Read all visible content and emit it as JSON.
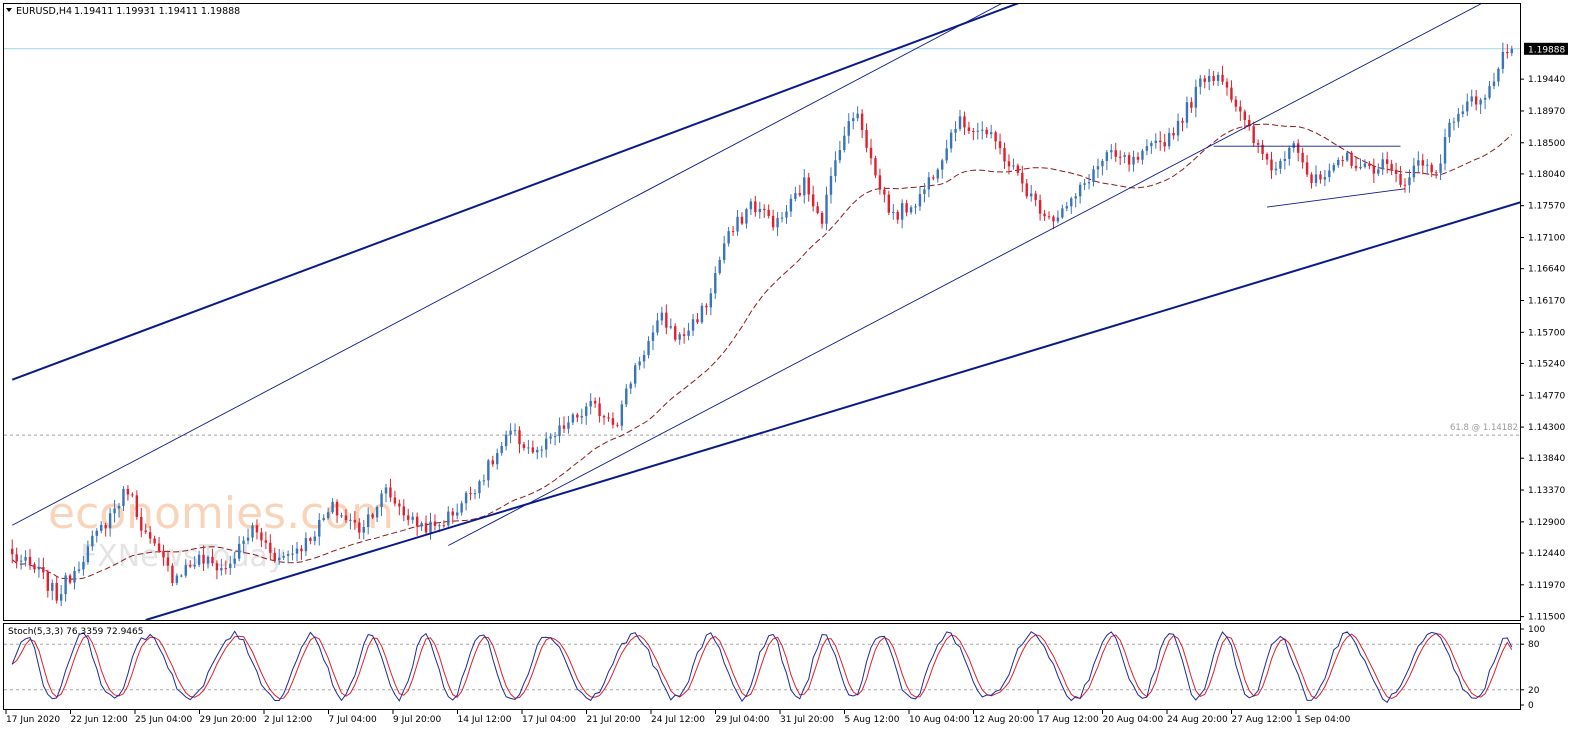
{
  "header": {
    "symbol": "EURUSD,H4",
    "ohlc": "1.19411 1.19931 1.19411 1.19888"
  },
  "price_badge": "1.19888",
  "fib_label": "61.8 @ 1.14182",
  "stoch_label": "Stoch(5,3,3) 76.3359 72.9465",
  "watermark": {
    "line1": "economies.com",
    "line2": "FXNewsToday"
  },
  "colors": {
    "bull": "#3a74b8",
    "bear": "#e21f2c",
    "ma": "#8b1a1a",
    "trend": "#0b1a8a",
    "stoch_main": "#1f2a9a",
    "stoch_signal": "#e0202a",
    "grid_level": "#a0a0a0",
    "last_price_line": "#9fd3e6"
  },
  "chart_data": {
    "type": "candlestick",
    "title": "EURUSD,H4",
    "ylim": [
      1.1145,
      1.2055
    ],
    "y_ticks": [
      "1.19440",
      "1.18970",
      "1.18500",
      "1.18040",
      "1.17570",
      "1.17100",
      "1.16640",
      "1.16170",
      "1.15700",
      "1.15240",
      "1.14770",
      "1.14300",
      "1.13840",
      "1.13370",
      "1.12900",
      "1.12440",
      "1.11970",
      "1.11500"
    ],
    "x_ticks": [
      "17 Jun 2020",
      "22 Jun 12:00",
      "25 Jun 04:00",
      "29 Jun 20:00",
      "2 Jul 12:00",
      "7 Jul 04:00",
      "9 Jul 20:00",
      "14 Jul 12:00",
      "17 Jul 04:00",
      "21 Jul 20:00",
      "24 Jul 12:00",
      "29 Jul 04:00",
      "31 Jul 20:00",
      "5 Aug 12:00",
      "10 Aug 04:00",
      "12 Aug 20:00",
      "17 Aug 12:00",
      "20 Aug 04:00",
      "24 Aug 20:00",
      "27 Aug 12:00",
      "1 Sep 04:00"
    ],
    "last_price": 1.19888,
    "fib_level": 1.14182,
    "price_anchors": [
      [
        0,
        1.124
      ],
      [
        6,
        1.1215
      ],
      [
        10,
        1.118
      ],
      [
        15,
        1.123
      ],
      [
        20,
        1.128
      ],
      [
        26,
        1.134
      ],
      [
        30,
        1.127
      ],
      [
        36,
        1.121
      ],
      [
        42,
        1.1235
      ],
      [
        48,
        1.122
      ],
      [
        54,
        1.128
      ],
      [
        60,
        1.1235
      ],
      [
        66,
        1.126
      ],
      [
        72,
        1.131
      ],
      [
        78,
        1.128
      ],
      [
        84,
        1.1335
      ],
      [
        90,
        1.129
      ],
      [
        95,
        1.128
      ],
      [
        100,
        1.131
      ],
      [
        106,
        1.136
      ],
      [
        112,
        1.142
      ],
      [
        118,
        1.139
      ],
      [
        124,
        1.143
      ],
      [
        130,
        1.146
      ],
      [
        136,
        1.144
      ],
      [
        140,
        1.152
      ],
      [
        146,
        1.159
      ],
      [
        150,
        1.156
      ],
      [
        156,
        1.161
      ],
      [
        160,
        1.17
      ],
      [
        166,
        1.176
      ],
      [
        172,
        1.173
      ],
      [
        178,
        1.179
      ],
      [
        182,
        1.174
      ],
      [
        186,
        1.185
      ],
      [
        190,
        1.19
      ],
      [
        194,
        1.18
      ],
      [
        198,
        1.174
      ],
      [
        204,
        1.177
      ],
      [
        208,
        1.182
      ],
      [
        212,
        1.188
      ],
      [
        218,
        1.187
      ],
      [
        222,
        1.184
      ],
      [
        226,
        1.18
      ],
      [
        230,
        1.176
      ],
      [
        234,
        1.174
      ],
      [
        238,
        1.176
      ],
      [
        242,
        1.18
      ],
      [
        246,
        1.183
      ],
      [
        252,
        1.182
      ],
      [
        256,
        1.184
      ],
      [
        260,
        1.186
      ],
      [
        264,
        1.19
      ],
      [
        268,
        1.195
      ],
      [
        272,
        1.195
      ],
      [
        276,
        1.189
      ],
      [
        280,
        1.184
      ],
      [
        284,
        1.181
      ],
      [
        288,
        1.186
      ],
      [
        292,
        1.179
      ],
      [
        296,
        1.18
      ],
      [
        300,
        1.183
      ],
      [
        304,
        1.181
      ],
      [
        308,
        1.182
      ],
      [
        312,
        1.179
      ],
      [
        316,
        1.182
      ],
      [
        320,
        1.181
      ],
      [
        324,
        1.189
      ],
      [
        328,
        1.191
      ],
      [
        332,
        1.193
      ],
      [
        336,
        1.1988
      ]
    ],
    "trendlines": [
      {
        "name": "upper-channel",
        "x1": 0,
        "y1": 1.15,
        "x2": 248,
        "y2": 1.211,
        "weight": "thick"
      },
      {
        "name": "lower-channel",
        "x1": 30,
        "y1": 1.1145,
        "x2": 398,
        "y2": 1.188,
        "weight": "thick"
      },
      {
        "name": "steep-upper",
        "x1": 0,
        "y1": 1.1285,
        "x2": 238,
        "y2": 1.211,
        "weight": "thin"
      },
      {
        "name": "steep-lower",
        "x1": 98,
        "y1": 1.1255,
        "x2": 330,
        "y2": 1.2055,
        "weight": "thin"
      },
      {
        "name": "triangle-top",
        "x1": 270,
        "y1": 1.1845,
        "x2": 312,
        "y2": 1.1845,
        "weight": "thin"
      },
      {
        "name": "triangle-bottom",
        "x1": 282,
        "y1": 1.1755,
        "x2": 313,
        "y2": 1.1782,
        "weight": "thin"
      }
    ],
    "stochastic": {
      "name": "Stoch(5,3,3)",
      "main": 76.3359,
      "signal": 72.9465,
      "ylim": [
        0,
        100
      ],
      "levels": [
        20,
        80
      ],
      "y_ticks": [
        "100",
        "80",
        "20",
        "0"
      ]
    }
  }
}
